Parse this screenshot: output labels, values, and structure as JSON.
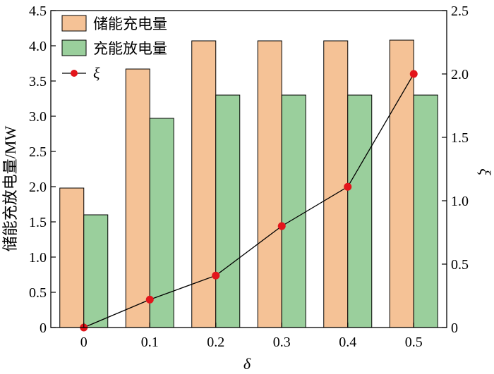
{
  "chart_data": {
    "type": "bar",
    "categories": [
      "0",
      "0.1",
      "0.2",
      "0.3",
      "0.4",
      "0.5"
    ],
    "series": [
      {
        "name": "储能充电量",
        "type": "bar",
        "axis": "left",
        "color": "#F5C296",
        "values": [
          1.98,
          3.67,
          4.07,
          4.07,
          4.07,
          4.08
        ]
      },
      {
        "name": "充能放电量",
        "type": "bar",
        "axis": "left",
        "color": "#9ACF9C",
        "values": [
          1.6,
          2.97,
          3.3,
          3.3,
          3.3,
          3.3
        ]
      },
      {
        "name": "ξ",
        "type": "line",
        "axis": "right",
        "color": "#E3151B",
        "values": [
          0,
          0.22,
          0.41,
          0.8,
          1.11,
          2.0
        ]
      }
    ],
    "xlabel": "δ",
    "ylabel": "储能充放电量/MW",
    "y2label": "ξ",
    "ylim": [
      0,
      4.5
    ],
    "y2lim": [
      0,
      2.5
    ],
    "yticks": [
      "0",
      "0.5",
      "1.0",
      "1.5",
      "2.0",
      "2.5",
      "3.0",
      "3.5",
      "4.0",
      "4.5"
    ],
    "y2ticks": [
      "0",
      "0.5",
      "1.0",
      "1.5",
      "2.0",
      "2.5"
    ],
    "legend_position": "top-left",
    "grid": false
  }
}
